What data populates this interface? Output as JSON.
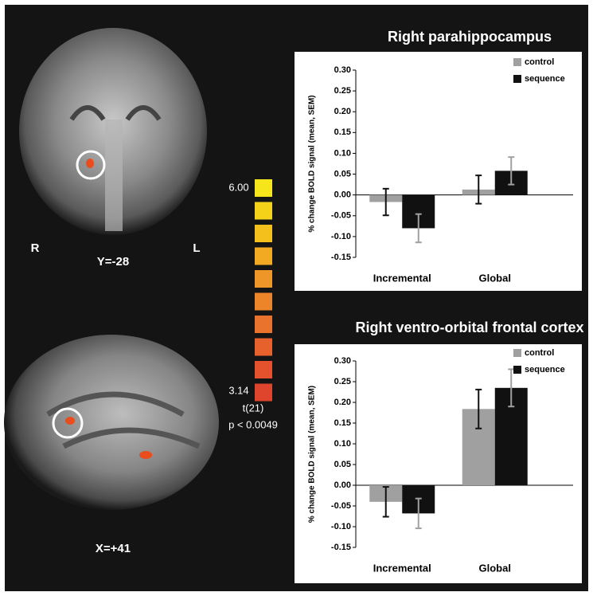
{
  "figure": {
    "coronal": {
      "left": "R",
      "right": "L",
      "caption": "Y=-28"
    },
    "sagittal": {
      "caption": "X=+41"
    },
    "colorbar": {
      "max_label": "6.00",
      "min_label": "3.14",
      "stat": "t(21)",
      "threshold": "p < 0.0049",
      "colors": [
        "#f7e51c",
        "#f5d21a",
        "#f3c01c",
        "#f1aa22",
        "#ef9628",
        "#ec842a",
        "#e9722c",
        "#e6612c",
        "#e3522c",
        "#df442c"
      ]
    }
  },
  "chart_data": [
    {
      "type": "bar",
      "title": "Right parahippocampus",
      "ylabel": "% change BOLD signal (mean, SEM)",
      "categories": [
        "Incremental",
        "Global"
      ],
      "series": [
        {
          "name": "control",
          "color": "#a0a0a0",
          "error_color": "#111111",
          "values": [
            -0.017,
            0.013
          ],
          "errors": [
            0.032,
            0.034
          ]
        },
        {
          "name": "sequence",
          "color": "#111111",
          "error_color": "#a0a0a0",
          "values": [
            -0.08,
            0.058
          ],
          "errors": [
            0.034,
            0.033
          ]
        }
      ],
      "ylim": [
        -0.15,
        0.3
      ],
      "yticks": [
        -0.15,
        {
          "value": -0.1,
          "label": "-0.10"
        },
        -0.05,
        {
          "value": 0,
          "label": "0.00"
        },
        0.05,
        {
          "value": 0.1,
          "label": "0.10"
        },
        0.15,
        {
          "value": 0.2,
          "label": "0.20"
        },
        0.25,
        {
          "value": 0.3,
          "label": "0.30"
        }
      ],
      "grid": false,
      "legend": "top-right"
    },
    {
      "type": "bar",
      "title": "Right ventro-orbital frontal cortex",
      "ylabel": "% change BOLD signal (mean, SEM)",
      "categories": [
        "Incremental",
        "Global"
      ],
      "series": [
        {
          "name": "control",
          "color": "#a0a0a0",
          "error_color": "#111111",
          "values": [
            -0.04,
            0.184
          ],
          "errors": [
            0.036,
            0.047
          ]
        },
        {
          "name": "sequence",
          "color": "#111111",
          "error_color": "#a0a0a0",
          "values": [
            -0.068,
            0.235
          ],
          "errors": [
            0.036,
            0.045
          ]
        }
      ],
      "ylim": [
        -0.15,
        0.3
      ],
      "yticks": [
        -0.15,
        {
          "value": -0.1,
          "label": "-0.10"
        },
        -0.05,
        {
          "value": 0,
          "label": "0.00"
        },
        0.05,
        {
          "value": 0.1,
          "label": "0.10"
        },
        0.15,
        {
          "value": 0.2,
          "label": "0.20"
        },
        0.25,
        {
          "value": 0.3,
          "label": "0.30"
        }
      ],
      "grid": false,
      "legend": "top-right"
    }
  ]
}
